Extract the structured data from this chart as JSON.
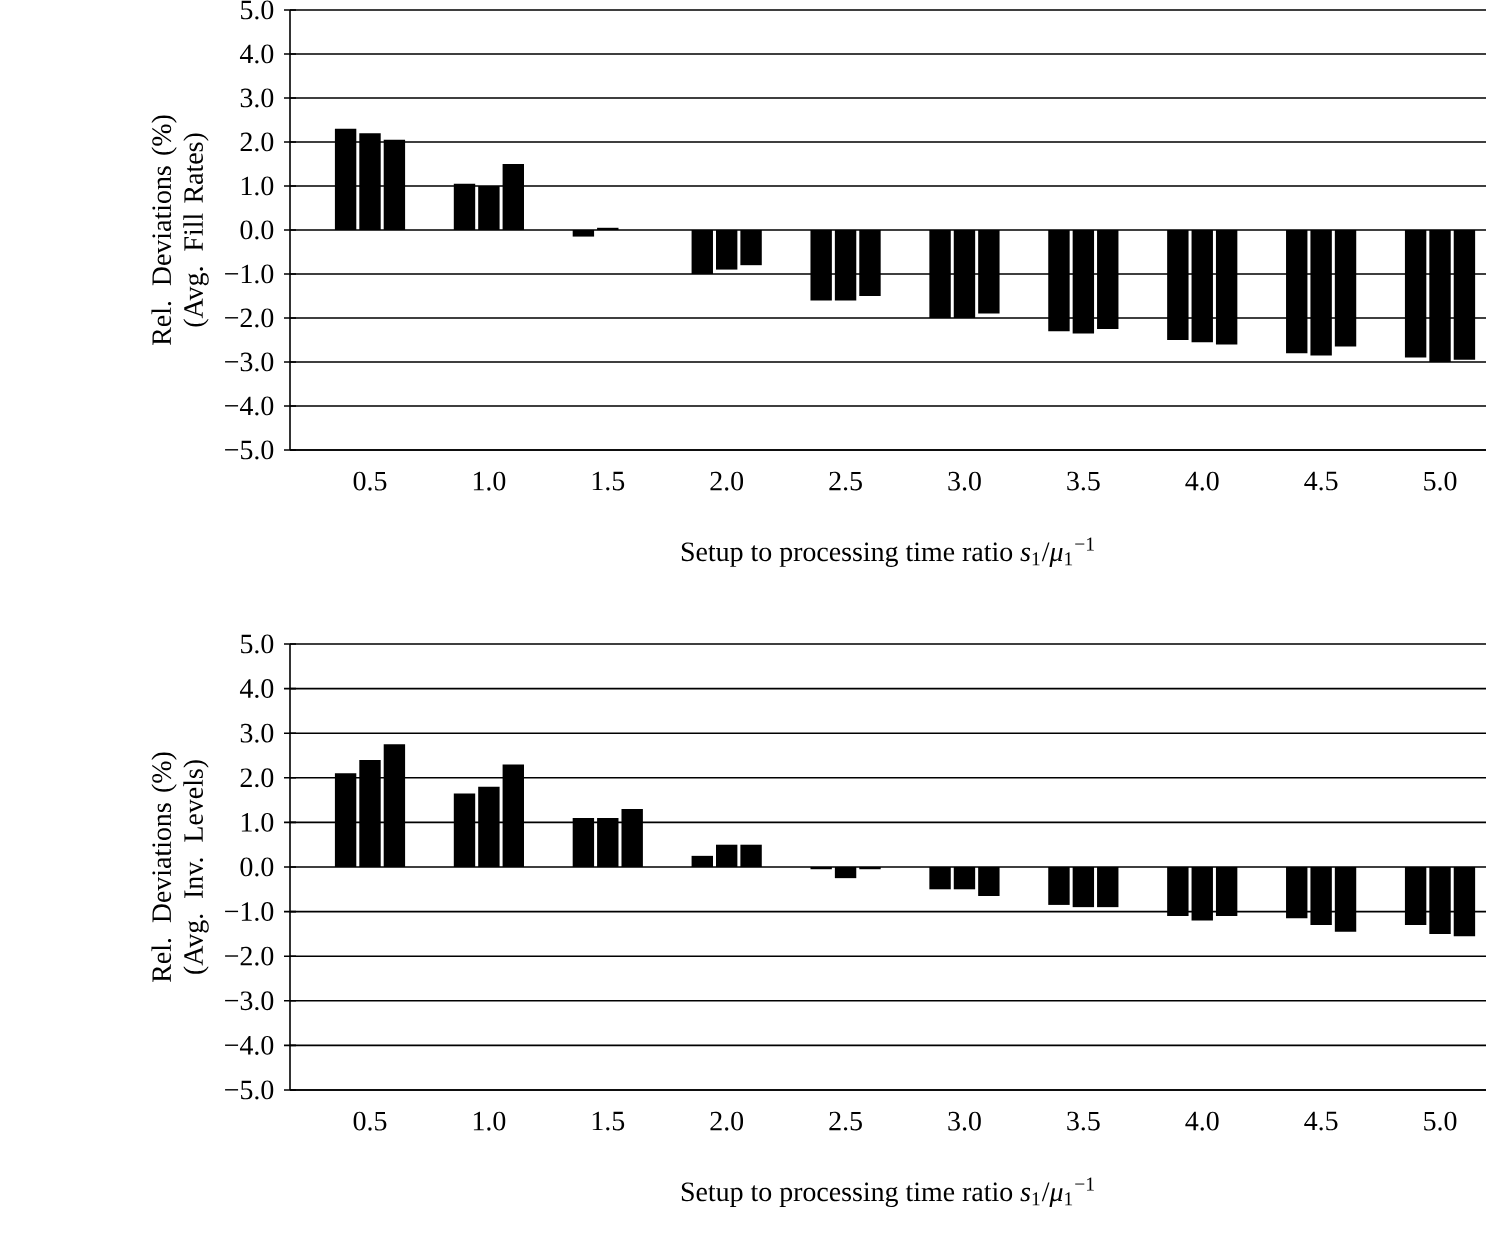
{
  "chart_data": [
    {
      "type": "bar",
      "xlabel": "Setup to processing time ratio *s*$_{1}$/*μ*$_{1}$$^{−1}$",
      "ylabel": "Rel. Deviations (%) (Avg. Fill Rates)",
      "categories": [
        "0.5",
        "1.0",
        "1.5",
        "2.0",
        "2.5",
        "3.0",
        "3.5",
        "4.0",
        "4.5",
        "5.0"
      ],
      "series": [
        {
          "color": "#000000",
          "values": [
            2.3,
            1.05,
            -0.15,
            -1.0,
            -1.6,
            -2.0,
            -2.3,
            -2.5,
            -2.8,
            -2.9
          ]
        },
        {
          "color": "#000000",
          "values": [
            2.2,
            1.0,
            0.05,
            -0.9,
            -1.6,
            -2.0,
            -2.35,
            -2.55,
            -2.85,
            -3.0
          ]
        },
        {
          "color": "#000000",
          "values": [
            2.05,
            1.5,
            0.0,
            -0.8,
            -1.5,
            -1.9,
            -2.25,
            -2.6,
            -2.65,
            -2.95
          ]
        }
      ],
      "ylim": [
        -5,
        5
      ],
      "yticks": [
        {
          "value": -5,
          "label": "−5.0"
        },
        {
          "value": -4,
          "label": "−4.0"
        },
        {
          "value": -3,
          "label": "−3.0"
        },
        {
          "value": -2,
          "label": "−2.0"
        },
        {
          "value": -1,
          "label": "−1.0"
        },
        {
          "value": 0,
          "label": "0.0"
        },
        {
          "value": 1,
          "label": "1.0"
        },
        {
          "value": 2,
          "label": "2.0"
        },
        {
          "value": 3,
          "label": "3.0"
        },
        {
          "value": 4,
          "label": "4.0"
        },
        {
          "value": 5,
          "label": "5.0"
        }
      ],
      "grid": "y"
    },
    {
      "type": "bar",
      "xlabel": "Setup to processing time ratio *s*$_{1}$/*μ*$_{1}$$^{−1}$",
      "ylabel": "Rel. Deviations (%) (Avg. Inv. Levels)",
      "categories": [
        "0.5",
        "1.0",
        "1.5",
        "2.0",
        "2.5",
        "3.0",
        "3.5",
        "4.0",
        "4.5",
        "5.0"
      ],
      "series": [
        {
          "color": "#000000",
          "values": [
            2.1,
            1.65,
            1.1,
            0.25,
            -0.05,
            -0.5,
            -0.85,
            -1.1,
            -1.15,
            -1.3
          ]
        },
        {
          "color": "#000000",
          "values": [
            2.4,
            1.8,
            1.1,
            0.5,
            -0.25,
            -0.5,
            -0.9,
            -1.2,
            -1.3,
            -1.5
          ]
        },
        {
          "color": "#000000",
          "values": [
            2.75,
            2.3,
            1.3,
            0.5,
            -0.05,
            -0.65,
            -0.9,
            -1.1,
            -1.45,
            -1.55
          ]
        }
      ],
      "ylim": [
        -5,
        5
      ],
      "yticks": [
        {
          "value": -5,
          "label": "−5.0"
        },
        {
          "value": -4,
          "label": "−4.0"
        },
        {
          "value": -3,
          "label": "−3.0"
        },
        {
          "value": -2,
          "label": "−2.0"
        },
        {
          "value": -1,
          "label": "−1.0"
        },
        {
          "value": 0,
          "label": "0.0"
        },
        {
          "value": 1,
          "label": "1.0"
        },
        {
          "value": 2,
          "label": "2.0"
        },
        {
          "value": 3,
          "label": "3.0"
        },
        {
          "value": 4,
          "label": "4.0"
        },
        {
          "value": 5,
          "label": "5.0"
        }
      ],
      "grid": "y"
    }
  ]
}
